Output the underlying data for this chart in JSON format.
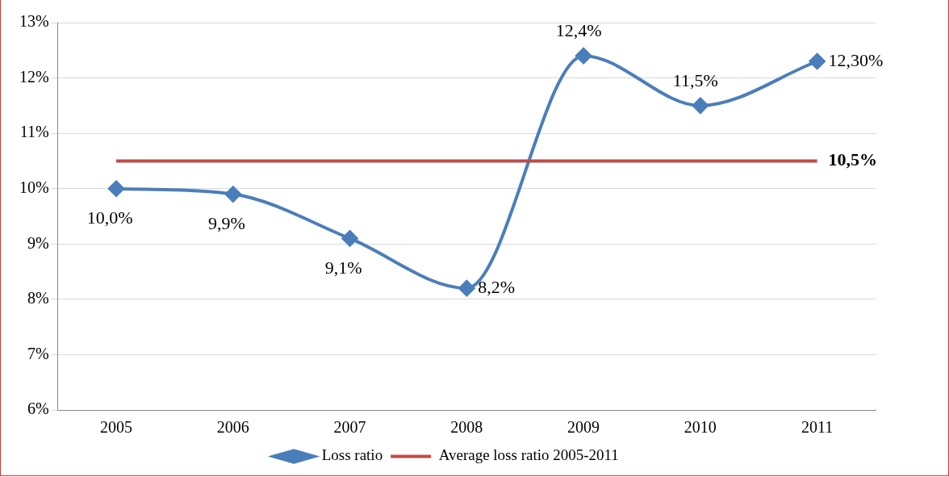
{
  "chart_data": {
    "type": "line",
    "categories": [
      "2005",
      "2006",
      "2007",
      "2008",
      "2009",
      "2010",
      "2011"
    ],
    "series": [
      {
        "name": "Loss ratio",
        "color": "#4a7ebb",
        "marker": "diamond",
        "values": [
          10.0,
          9.9,
          9.1,
          8.2,
          12.4,
          11.5,
          12.3
        ],
        "value_labels": [
          "10,0%",
          "9,9%",
          "9,1%",
          "8,2%",
          "12,4%",
          "11,5%",
          "12,30%"
        ]
      },
      {
        "name": "Average loss ratio 2005-2011",
        "color": "#be4b48",
        "marker": "none",
        "values": [
          10.5,
          10.5,
          10.5,
          10.5,
          10.5,
          10.5,
          10.5
        ],
        "value_labels": [
          null,
          null,
          null,
          null,
          null,
          null,
          "10,5%"
        ]
      }
    ],
    "ylim": [
      6,
      13
    ],
    "yticks": [
      {
        "value": 6,
        "label": "6%"
      },
      {
        "value": 7,
        "label": "7%"
      },
      {
        "value": 8,
        "label": "8%"
      },
      {
        "value": 9,
        "label": "9%"
      },
      {
        "value": 10,
        "label": "10%"
      },
      {
        "value": 11,
        "label": "11%"
      },
      {
        "value": 12,
        "label": "12%"
      },
      {
        "value": 13,
        "label": "13%"
      }
    ],
    "grid": "y",
    "legend": "bottom"
  }
}
